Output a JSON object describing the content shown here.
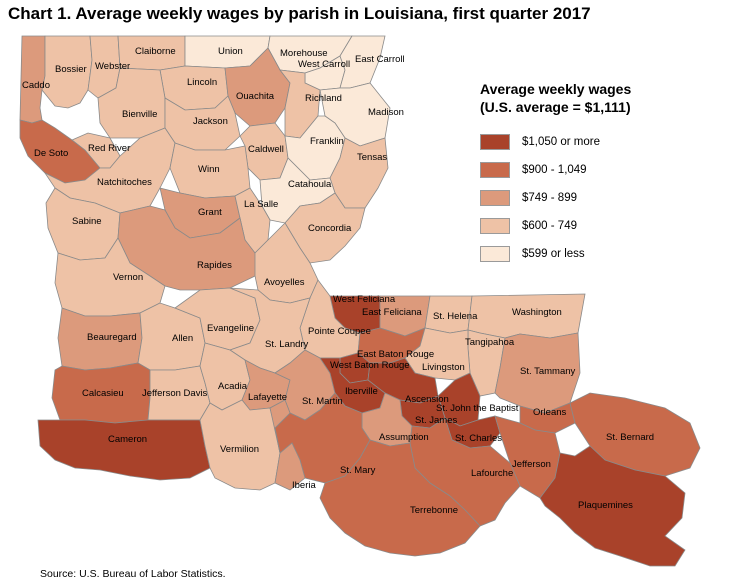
{
  "title": "Chart 1. Average weekly wages by parish in Louisiana, first quarter 2017",
  "source": "Source: U.S. Bureau of Labor Statistics.",
  "legend": {
    "title_line1": "Average weekly wages",
    "title_line2": "(U.S. average = $1,111)",
    "classes": [
      {
        "label": "$1,050 or more",
        "color": "#a9422a"
      },
      {
        "label": "$900 - 1,049",
        "color": "#c86a4b"
      },
      {
        "label": "$749 - 899",
        "color": "#dc9a7c"
      },
      {
        "label": "$600 - 749",
        "color": "#eec2a6"
      },
      {
        "label": "$599 or less",
        "color": "#fbe9d8"
      }
    ]
  },
  "parishes": [
    {
      "name": "Caddo",
      "class": 2
    },
    {
      "name": "Bossier",
      "class": 3
    },
    {
      "name": "Webster",
      "class": 3
    },
    {
      "name": "Claiborne",
      "class": 3
    },
    {
      "name": "Union",
      "class": 4
    },
    {
      "name": "Morehouse",
      "class": 4
    },
    {
      "name": "West Carroll",
      "class": 4
    },
    {
      "name": "East Carroll",
      "class": 4
    },
    {
      "name": "Lincoln",
      "class": 3
    },
    {
      "name": "Ouachita",
      "class": 2
    },
    {
      "name": "Richland",
      "class": 3
    },
    {
      "name": "Madison",
      "class": 4
    },
    {
      "name": "Bienville",
      "class": 3
    },
    {
      "name": "Jackson",
      "class": 3
    },
    {
      "name": "De Soto",
      "class": 1
    },
    {
      "name": "Red River",
      "class": 3
    },
    {
      "name": "Caldwell",
      "class": 3
    },
    {
      "name": "Franklin",
      "class": 4
    },
    {
      "name": "Tensas",
      "class": 3
    },
    {
      "name": "Natchitoches",
      "class": 3
    },
    {
      "name": "Winn",
      "class": 3
    },
    {
      "name": "Catahoula",
      "class": 4
    },
    {
      "name": "Sabine",
      "class": 3
    },
    {
      "name": "Grant",
      "class": 2
    },
    {
      "name": "La Salle",
      "class": 3
    },
    {
      "name": "Concordia",
      "class": 3
    },
    {
      "name": "Rapides",
      "class": 2
    },
    {
      "name": "Vernon",
      "class": 3
    },
    {
      "name": "Avoyelles",
      "class": 3
    },
    {
      "name": "West Feliciana",
      "class": 0
    },
    {
      "name": "East Feliciana",
      "class": 2
    },
    {
      "name": "St. Helena",
      "class": 3
    },
    {
      "name": "Washington",
      "class": 3
    },
    {
      "name": "Beauregard",
      "class": 2
    },
    {
      "name": "Allen",
      "class": 3
    },
    {
      "name": "Evangeline",
      "class": 3
    },
    {
      "name": "Pointe Coupee",
      "class": 3
    },
    {
      "name": "St. Landry",
      "class": 3
    },
    {
      "name": "Tangipahoa",
      "class": 3
    },
    {
      "name": "East Baton Rouge",
      "class": 1
    },
    {
      "name": "West Baton Rouge",
      "class": 0
    },
    {
      "name": "Livingston",
      "class": 3
    },
    {
      "name": "St. Tammany",
      "class": 2
    },
    {
      "name": "Calcasieu",
      "class": 1
    },
    {
      "name": "Jefferson Davis",
      "class": 3
    },
    {
      "name": "Acadia",
      "class": 3
    },
    {
      "name": "Lafayette",
      "class": 2
    },
    {
      "name": "St. Martin",
      "class": 2
    },
    {
      "name": "Iberville",
      "class": 0
    },
    {
      "name": "Ascension",
      "class": 0
    },
    {
      "name": "St. John the Baptist",
      "class": 0
    },
    {
      "name": "Orleans",
      "class": 1
    },
    {
      "name": "St. James",
      "class": 0
    },
    {
      "name": "St. Charles",
      "class": 0
    },
    {
      "name": "Assumption",
      "class": 2
    },
    {
      "name": "Cameron",
      "class": 0
    },
    {
      "name": "Vermilion",
      "class": 3
    },
    {
      "name": "St. Bernard",
      "class": 1
    },
    {
      "name": "Jefferson",
      "class": 1
    },
    {
      "name": "St. Mary",
      "class": 1
    },
    {
      "name": "Iberia",
      "class": 2
    },
    {
      "name": "Lafourche",
      "class": 1
    },
    {
      "name": "Terrebonne",
      "class": 1
    },
    {
      "name": "Plaquemines",
      "class": 0
    }
  ]
}
